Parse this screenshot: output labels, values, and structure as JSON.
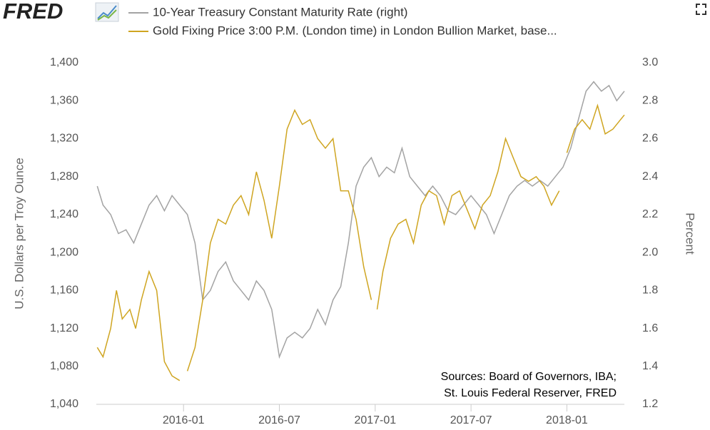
{
  "chart_data": {
    "type": "line",
    "brand": "FRED",
    "legend": "top",
    "xlim": [
      2015.545,
      2018.3
    ],
    "xticks": [
      {
        "value": 2016.0,
        "label": "2016-01"
      },
      {
        "value": 2016.5,
        "label": "2016-07"
      },
      {
        "value": 2017.0,
        "label": "2017-01"
      },
      {
        "value": 2017.5,
        "label": "2017-07"
      },
      {
        "value": 2018.0,
        "label": "2018-01"
      }
    ],
    "ylabel": "U.S. Dollars per Troy Ounce",
    "y2label": "Percent",
    "ylim": [
      1040,
      1400
    ],
    "yticks": [
      {
        "value": 1040,
        "label": "1,040"
      },
      {
        "value": 1080,
        "label": "1,080"
      },
      {
        "value": 1120,
        "label": "1,120"
      },
      {
        "value": 1160,
        "label": "1,160"
      },
      {
        "value": 1200,
        "label": "1,200"
      },
      {
        "value": 1240,
        "label": "1,240"
      },
      {
        "value": 1280,
        "label": "1,280"
      },
      {
        "value": 1320,
        "label": "1,320"
      },
      {
        "value": 1360,
        "label": "1,360"
      },
      {
        "value": 1400,
        "label": "1,400"
      }
    ],
    "y2lim": [
      1.2,
      3.0
    ],
    "y2ticks": [
      1.2,
      1.4,
      1.6,
      1.8,
      {
        "value": 2.0,
        "label": "2.0"
      },
      2.2,
      2.4,
      2.6,
      2.8,
      {
        "value": 3.0,
        "label": "3.0"
      }
    ],
    "grid": false,
    "annotations": [
      "Sources:  Board of Governors, IBA;",
      "St. Louis Federal Reserver, FRED"
    ],
    "series": [
      {
        "name": "10-Year Treasury Constant Maturity Rate (right)",
        "color": "#a3a3a3",
        "axis": "y2",
        "x": [
          2015.55,
          2015.58,
          2015.62,
          2015.66,
          2015.7,
          2015.74,
          2015.78,
          2015.82,
          2015.86,
          2015.9,
          2015.94,
          2015.98,
          2016.02,
          2016.06,
          2016.1,
          2016.14,
          2016.18,
          2016.22,
          2016.26,
          2016.3,
          2016.34,
          2016.38,
          2016.42,
          2016.46,
          2016.5,
          2016.54,
          2016.58,
          2016.62,
          2016.66,
          2016.7,
          2016.74,
          2016.78,
          2016.82,
          2016.86,
          2016.9,
          2016.94,
          2016.98,
          2017.02,
          2017.06,
          2017.1,
          2017.14,
          2017.18,
          2017.22,
          2017.26,
          2017.3,
          2017.34,
          2017.38,
          2017.42,
          2017.46,
          2017.5,
          2017.54,
          2017.58,
          2017.62,
          2017.66,
          2017.7,
          2017.74,
          2017.78,
          2017.82,
          2017.86,
          2017.9,
          2017.94,
          2017.98,
          2018.02,
          2018.06,
          2018.1,
          2018.14,
          2018.18,
          2018.22,
          2018.26,
          2018.3
        ],
        "values": [
          2.35,
          2.25,
          2.2,
          2.1,
          2.12,
          2.05,
          2.15,
          2.25,
          2.3,
          2.22,
          2.3,
          2.25,
          2.2,
          2.05,
          1.75,
          1.8,
          1.9,
          1.95,
          1.85,
          1.8,
          1.75,
          1.85,
          1.8,
          1.7,
          1.45,
          1.55,
          1.58,
          1.55,
          1.6,
          1.7,
          1.62,
          1.75,
          1.82,
          2.05,
          2.35,
          2.45,
          2.5,
          2.4,
          2.45,
          2.42,
          2.55,
          2.4,
          2.35,
          2.3,
          2.35,
          2.3,
          2.22,
          2.2,
          2.25,
          2.3,
          2.25,
          2.2,
          2.1,
          2.2,
          2.3,
          2.35,
          2.38,
          2.35,
          2.38,
          2.35,
          2.4,
          2.45,
          2.55,
          2.7,
          2.85,
          2.9,
          2.85,
          2.88,
          2.8,
          2.85
        ]
      },
      {
        "name": "Gold Fixing Price 3:00 P.M. (London time) in London Bullion Market, base...",
        "color": "#cfa521",
        "x": [
          2015.55,
          2015.58,
          2015.62,
          2015.65,
          2015.68,
          2015.72,
          2015.75,
          2015.78,
          2015.82,
          2015.86,
          2015.9,
          2015.94,
          2015.98,
          2016.0,
          2016.02,
          2016.06,
          2016.1,
          2016.14,
          2016.18,
          2016.22,
          2016.26,
          2016.3,
          2016.34,
          2016.38,
          2016.42,
          2016.46,
          2016.5,
          2016.54,
          2016.58,
          2016.62,
          2016.66,
          2016.7,
          2016.74,
          2016.78,
          2016.82,
          2016.86,
          2016.9,
          2016.94,
          2016.98,
          2016.99,
          2017.01,
          2017.04,
          2017.08,
          2017.12,
          2017.16,
          2017.2,
          2017.24,
          2017.28,
          2017.32,
          2017.36,
          2017.4,
          2017.44,
          2017.48,
          2017.52,
          2017.56,
          2017.6,
          2017.64,
          2017.68,
          2017.72,
          2017.76,
          2017.8,
          2017.84,
          2017.88,
          2017.92,
          2017.96,
          2017.98,
          2018.0,
          2018.04,
          2018.08,
          2018.12,
          2018.16,
          2018.2,
          2018.24,
          2018.28,
          2018.3
        ],
        "values": [
          1100,
          1090,
          1120,
          1160,
          1130,
          1140,
          1120,
          1150,
          1180,
          1160,
          1085,
          1070,
          1065,
          null,
          1075,
          1100,
          1150,
          1210,
          1235,
          1230,
          1250,
          1260,
          1240,
          1285,
          1255,
          1215,
          1270,
          1330,
          1350,
          1335,
          1340,
          1320,
          1310,
          1320,
          1265,
          1265,
          1235,
          1185,
          1150,
          null,
          1140,
          1180,
          1215,
          1230,
          1235,
          1210,
          1250,
          1265,
          1260,
          1230,
          1260,
          1265,
          1245,
          1225,
          1250,
          1260,
          1285,
          1320,
          1300,
          1280,
          1275,
          1280,
          1270,
          1250,
          1265,
          null,
          1305,
          1330,
          1340,
          1330,
          1355,
          1325,
          1330,
          1340,
          1345
        ]
      }
    ]
  }
}
